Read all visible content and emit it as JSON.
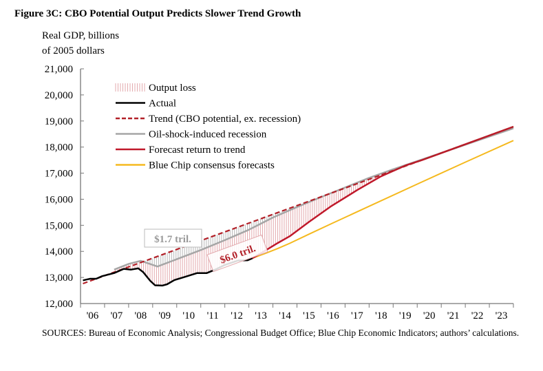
{
  "title": "Figure 3C: CBO Potential Output Predicts Slower Trend Growth",
  "sources": "SOURCES: Bureau of Economic Analysis; Congressional Budget Office; Blue Chip Economic Indicators; authors’ calculations.",
  "chart_data": {
    "type": "line",
    "ylabel_lines": [
      "Real GDP, billions",
      "of 2005 dollars"
    ],
    "ylim": [
      12000,
      21000
    ],
    "yticks": [
      12000,
      13000,
      14000,
      15000,
      16000,
      17000,
      18000,
      19000,
      20000,
      21000
    ],
    "ytick_labels": [
      "12,000",
      "13,000",
      "14,000",
      "15,000",
      "16,000",
      "17,000",
      "18,000",
      "19,000",
      "20,000",
      "21,000"
    ],
    "xlim": [
      2006,
      2024
    ],
    "xtick_labels": [
      "'06",
      "'07",
      "'08",
      "'09",
      "'10",
      "'11",
      "'12",
      "'13",
      "'14",
      "'15",
      "'16",
      "'17",
      "'18",
      "'19",
      "'20",
      "'21",
      "'22",
      "'23"
    ],
    "legend_position": "top-left",
    "legend": [
      "Output loss",
      "Actual",
      "Trend (CBO potential, ex. recession)",
      "Oil-shock-induced recession",
      "Forecast return to trend",
      "Blue Chip consensus forecasts"
    ],
    "colors": {
      "actual": "#000000",
      "trend": "#b22028",
      "oil": "#a6a6a6",
      "forecast": "#c0182a",
      "bluechip": "#f5b91e",
      "loss": "#e3a9ad",
      "oil_loss": "#b8b8b8"
    },
    "series": [
      {
        "name": "Trend (CBO potential, ex. recession)",
        "x": [
          2006.1,
          2024
        ],
        "y": [
          12765,
          18780
        ]
      },
      {
        "name": "Actual",
        "x": [
          2006.1,
          2006.4,
          2006.65,
          2006.9,
          2007.4,
          2007.8,
          2008.1,
          2008.4,
          2008.6,
          2008.9,
          2009.1,
          2009.4,
          2009.6,
          2009.9,
          2010.3,
          2010.85,
          2011.25,
          2011.6,
          2012.0,
          2012.55,
          2012.95,
          2013.15
        ],
        "y": [
          12890,
          12950,
          12950,
          13050,
          13170,
          13330,
          13300,
          13350,
          13210,
          12870,
          12700,
          12690,
          12740,
          12900,
          13010,
          13170,
          13170,
          13300,
          13480,
          13650,
          13660,
          13740
        ]
      },
      {
        "name": "Oil-shock-induced recession",
        "x": [
          2007.4,
          2008.0,
          2008.5,
          2009.2,
          2010.0,
          2011.0,
          2012.0,
          2013.0,
          2014.0,
          2015.0,
          2016.0,
          2017.0,
          2018.0,
          2019.0,
          2020.0,
          2024
        ],
        "y": [
          13300,
          13520,
          13640,
          13420,
          13700,
          14050,
          14430,
          14830,
          15300,
          15700,
          16080,
          16450,
          16820,
          17150,
          17460,
          18720
        ]
      },
      {
        "name": "Forecast return to trend",
        "x": [
          2013.15,
          2013.7,
          2014.2,
          2014.7,
          2015.5,
          2016.4,
          2017.5,
          2018.5,
          2019.5,
          2020.2,
          2024
        ],
        "y": [
          13740,
          14040,
          14320,
          14580,
          15130,
          15720,
          16350,
          16880,
          17290,
          17500,
          18780
        ]
      },
      {
        "name": "Blue Chip consensus forecasts",
        "x": [
          2013.15,
          2013.7,
          2014.2,
          2014.7,
          2015.5,
          2016.5,
          2018,
          2020,
          2022,
          2024
        ],
        "y": [
          13740,
          13930,
          14110,
          14310,
          14660,
          15090,
          15730,
          16580,
          17420,
          18250
        ]
      }
    ],
    "annotations": [
      {
        "text": "$1.7 tril.",
        "color": "#999999"
      },
      {
        "text": "$6.0 tril.",
        "color": "#b22028"
      }
    ]
  }
}
